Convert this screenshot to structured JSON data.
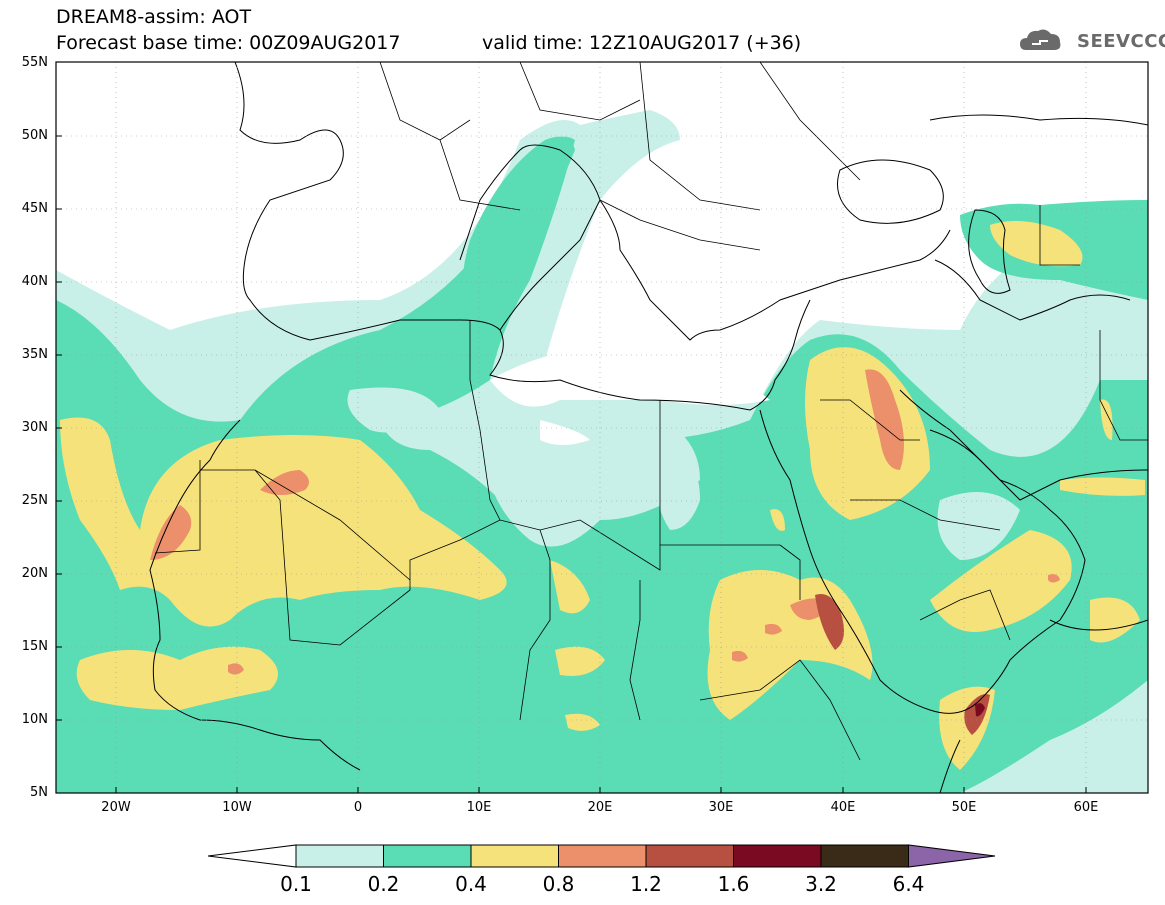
{
  "header": {
    "line1": "DREAM8-assim: AOT",
    "line2": "Forecast base time: 00Z09AUG2017",
    "valid": "valid time: 12Z10AUG2017 (+36)"
  },
  "logo": {
    "text": "SEEVCCC",
    "icon": "cloud-icon"
  },
  "axes": {
    "lat_labels": [
      "55N",
      "50N",
      "45N",
      "40N",
      "35N",
      "30N",
      "25N",
      "20N",
      "15N",
      "10N",
      "5N"
    ],
    "lon_labels": [
      "20W",
      "10W",
      "0",
      "10E",
      "20E",
      "30E",
      "40E",
      "50E",
      "60E"
    ]
  },
  "colorbar": {
    "labels": [
      "0.1",
      "0.2",
      "0.4",
      "0.8",
      "1.2",
      "1.6",
      "3.2",
      "6.4"
    ],
    "colors": [
      "#c8f0e8",
      "#5adcb4",
      "#f6e27a",
      "#eb906a",
      "#b75041",
      "#7a0a22",
      "#3a2a18",
      "#8c64a8"
    ]
  },
  "colors": {
    "c01": "#c8f0e8",
    "c02": "#5adcb4",
    "c04": "#f6e27a",
    "c08": "#eb906a",
    "c12": "#b75041",
    "c16": "#7a0a22"
  }
}
